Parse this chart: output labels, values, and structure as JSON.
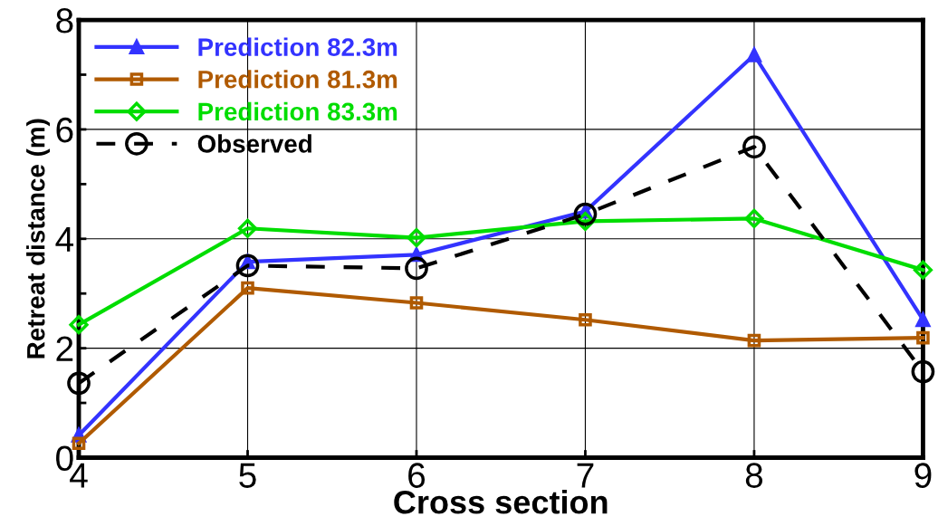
{
  "chart_data": {
    "type": "line",
    "xlabel": "Cross section",
    "ylabel": "Retreat distance (m)",
    "x": [
      4,
      5,
      6,
      7,
      8,
      9
    ],
    "xlim": [
      4,
      9
    ],
    "xticks": [
      4,
      5,
      6,
      7,
      8,
      9
    ],
    "ylim": [
      0,
      8
    ],
    "yticks": [
      0,
      {
        "value": 1,
        "label": null
      },
      2,
      {
        "value": 3,
        "label": null
      },
      4,
      {
        "value": 5,
        "label": null
      },
      6,
      {
        "value": 7,
        "label": null
      },
      8
    ],
    "grid": true,
    "legend": "top left",
    "series": [
      {
        "name": "Prediction 82.3m",
        "color": "#3333ff",
        "marker": "triangle",
        "line_style": "solid",
        "values": [
          0.41,
          3.58,
          3.71,
          4.5,
          7.36,
          2.52
        ]
      },
      {
        "name": "Prediction 81.3m",
        "color": "#b05a00",
        "marker": "square",
        "line_style": "solid",
        "values": [
          0.26,
          3.1,
          2.83,
          2.52,
          2.14,
          2.19
        ]
      },
      {
        "name": "Prediction 83.3m",
        "color": "#00dd00",
        "marker": "diamond",
        "line_style": "solid",
        "values": [
          2.43,
          4.19,
          4.02,
          4.32,
          4.37,
          3.43
        ]
      },
      {
        "name": "Observed",
        "color": "#000000",
        "marker": "circle",
        "line_style": "dashed",
        "values": [
          1.36,
          3.51,
          3.46,
          4.45,
          5.68,
          1.57
        ]
      }
    ]
  }
}
